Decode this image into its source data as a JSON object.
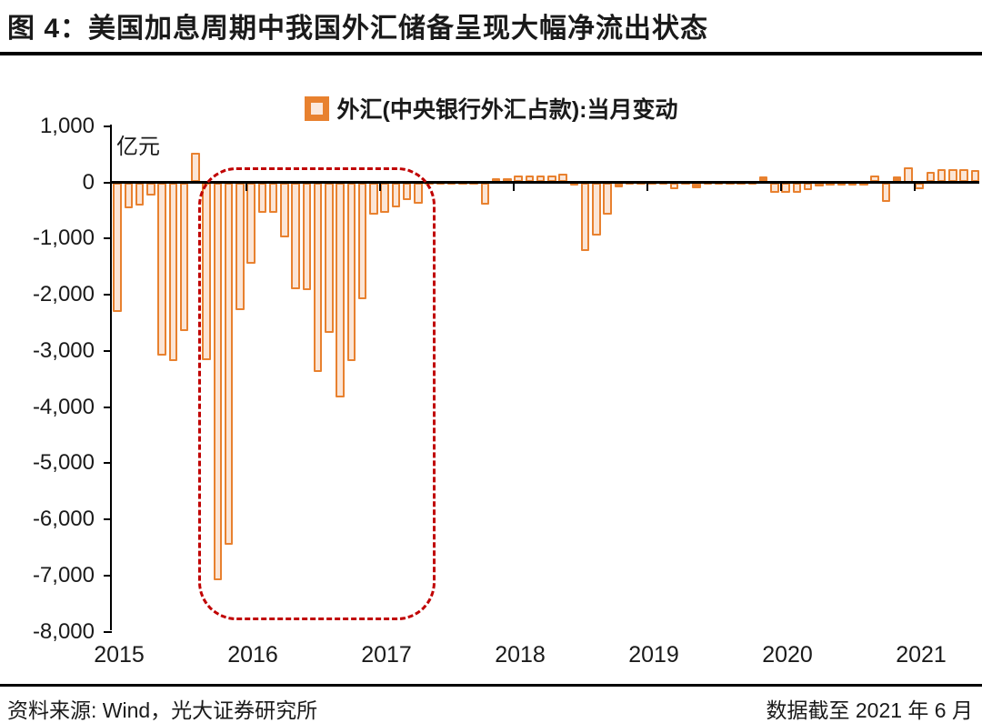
{
  "title": "图 4：美国加息周期中我国外汇储备呈现大幅净流出状态",
  "legend": {
    "label": "外汇(中央银行外汇占款):当月变动"
  },
  "footer": {
    "source": "资料来源: Wind，光大证券研究所",
    "cutoff": "数据截至 2021 年 6 月"
  },
  "colors": {
    "bar_border": "#E8812F",
    "bar_fill": "#FBE5D6",
    "axis": "#000000",
    "highlight": "#C00000",
    "text": "#1A1A1A"
  },
  "chart_data": {
    "type": "bar",
    "title": "外汇(中央银行外汇占款):当月变动",
    "unit_label": "亿元",
    "xlabel": "",
    "ylabel": "亿元",
    "ylim": [
      -8000,
      1000
    ],
    "grid": false,
    "legend_position": "top-center",
    "y_tick_values": [
      1000,
      0,
      -1000,
      -2000,
      -3000,
      -4000,
      -5000,
      -6000,
      -7000,
      -8000
    ],
    "y_tick_labels": [
      "1,000",
      "0",
      "-1,000",
      "-2,000",
      "-3,000",
      "-4,000",
      "-5,000",
      "-6,000",
      "-7,000",
      "-8,000"
    ],
    "x_year_labels": [
      "2015",
      "2016",
      "2017",
      "2018",
      "2019",
      "2020",
      "2021"
    ],
    "months": [
      "2015-01",
      "2015-02",
      "2015-03",
      "2015-04",
      "2015-05",
      "2015-06",
      "2015-07",
      "2015-08",
      "2015-09",
      "2015-10",
      "2015-11",
      "2015-12",
      "2016-01",
      "2016-02",
      "2016-03",
      "2016-04",
      "2016-05",
      "2016-06",
      "2016-07",
      "2016-08",
      "2016-09",
      "2016-10",
      "2016-11",
      "2016-12",
      "2017-01",
      "2017-02",
      "2017-03",
      "2017-04",
      "2017-05",
      "2017-06",
      "2017-07",
      "2017-08",
      "2017-09",
      "2017-10",
      "2017-11",
      "2017-12",
      "2018-01",
      "2018-02",
      "2018-03",
      "2018-04",
      "2018-05",
      "2018-06",
      "2018-07",
      "2018-08",
      "2018-09",
      "2018-10",
      "2018-11",
      "2018-12",
      "2019-01",
      "2019-02",
      "2019-03",
      "2019-04",
      "2019-05",
      "2019-06",
      "2019-07",
      "2019-08",
      "2019-09",
      "2019-10",
      "2019-11",
      "2019-12",
      "2020-01",
      "2020-02",
      "2020-03",
      "2020-04",
      "2020-05",
      "2020-06",
      "2020-07",
      "2020-08",
      "2020-09",
      "2020-10",
      "2020-11",
      "2020-12",
      "2021-01",
      "2021-02",
      "2021-03",
      "2021-04",
      "2021-05",
      "2021-06"
    ],
    "values": [
      -2307,
      -459,
      -420,
      -235,
      -3080,
      -3184,
      -2641,
      533,
      -3158,
      -7082,
      -6445,
      -2279,
      -1448,
      -544,
      -537,
      -977,
      -1905,
      -1918,
      -3375,
      -2678,
      -3826,
      -3178,
      -2088,
      -581,
      -547,
      -445,
      -310,
      -380,
      -30,
      -46,
      -25,
      -20,
      -20,
      -400,
      70,
      70,
      120,
      120,
      120,
      115,
      150,
      -50,
      -1220,
      -950,
      -580,
      -85,
      -40,
      -40,
      -40,
      -35,
      -120,
      -45,
      -110,
      -45,
      -40,
      -45,
      -40,
      -45,
      110,
      -185,
      -190,
      -190,
      -130,
      -80,
      -60,
      -60,
      -55,
      -60,
      125,
      -350,
      110,
      275,
      -125,
      190,
      240,
      240,
      230,
      220
    ],
    "highlight_box": {
      "from_month": "2015-09",
      "to_month": "2017-04",
      "top_value": 260,
      "bottom_value": -7700,
      "color": "#C00000",
      "style": "dashed-rounded"
    }
  }
}
